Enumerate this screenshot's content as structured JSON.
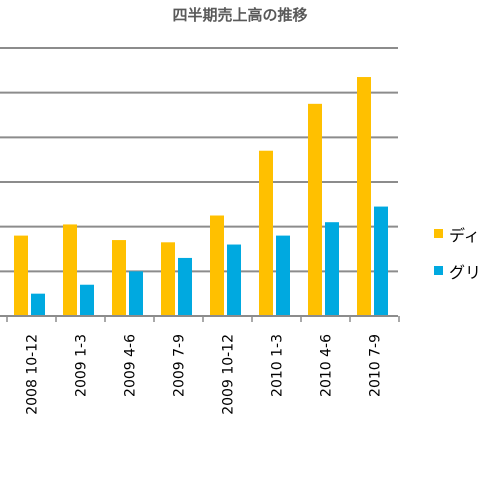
{
  "chart_data": {
    "type": "bar",
    "title": "四半期売上高の推移",
    "categories": [
      "2008 10-12",
      "2009 1-3",
      "2009 4-6",
      "2009 7-9",
      "2009 10-12",
      "2010 1-3",
      "2010 4-6",
      "2010 7-9"
    ],
    "series": [
      {
        "name": "ディ",
        "color": "#ffc000",
        "values": [
          18,
          20.5,
          17,
          16.5,
          22.5,
          37,
          47.5,
          53.5
        ]
      },
      {
        "name": "グリ",
        "color": "#00a9e0",
        "values": [
          5,
          7,
          10,
          13,
          16,
          18,
          21,
          24.5
        ]
      }
    ],
    "ylim": [
      0,
      60
    ],
    "grid": true,
    "legend_position": "right"
  }
}
